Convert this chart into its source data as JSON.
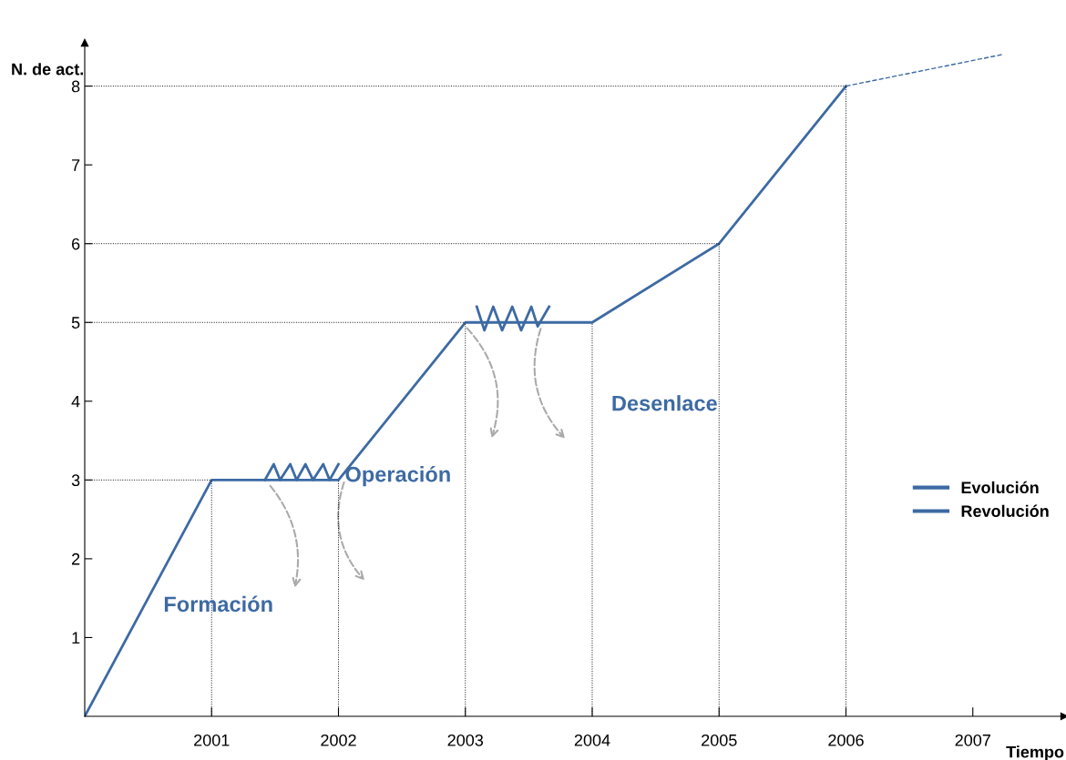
{
  "chart_data": {
    "type": "line",
    "xlabel": "Tiempo",
    "ylabel": "N. de act.",
    "annotations": [
      "Formación",
      "Operación",
      "Desenlace"
    ],
    "series": [
      {
        "name": "Evolución",
        "color": "#3d6aa3",
        "x": [
          2000,
          2001,
          2001.42,
          2002,
          2003,
          2003.6,
          2004,
          2005,
          2006
        ],
        "values": [
          0,
          3,
          3,
          3,
          5,
          5,
          5,
          6,
          8
        ]
      },
      {
        "name": "Revolución",
        "color": "#3d6aa3",
        "x": [
          2001.42,
          2001.49,
          2001.54,
          2001.62,
          2001.67,
          2001.74,
          2001.8,
          2001.88,
          2001.93,
          2002.0,
          2003.0,
          2003.09,
          2003.15,
          2003.22,
          2003.29,
          2003.37,
          2003.44,
          2003.52,
          2003.57,
          2003.66
        ],
        "values": [
          3,
          3.2,
          3.0,
          3.2,
          3.0,
          3.2,
          3.0,
          3.2,
          3.0,
          3.2,
          null,
          5.2,
          4.9,
          5.2,
          4.9,
          5.2,
          4.9,
          5.2,
          4.95,
          5.2
        ]
      },
      {
        "color": "#3d6aa3",
        "line_style": "dashed",
        "x": [
          2006,
          2007.23
        ],
        "values": [
          8,
          8.4
        ]
      }
    ],
    "xlim": [
      2000,
      2007.72
    ],
    "ylim": [
      0,
      8.55
    ],
    "xticks": [
      2001,
      2002,
      2003,
      2004,
      2005,
      2006,
      2007
    ],
    "yticks": [
      1,
      2,
      3,
      4,
      5,
      6,
      7,
      8
    ],
    "ref_lines": [
      {
        "axis": "x",
        "value": 2001
      },
      {
        "axis": "x",
        "value": 2002
      },
      {
        "axis": "x",
        "value": 2003
      },
      {
        "axis": "x",
        "value": 2004
      },
      {
        "axis": "x",
        "value": 2005
      },
      {
        "axis": "x",
        "value": 2006
      },
      {
        "axis": "y",
        "value": 3
      },
      {
        "axis": "y",
        "value": 5
      },
      {
        "axis": "y",
        "value": 6
      },
      {
        "axis": "y",
        "value": 8
      }
    ],
    "legend": "right",
    "grid": false
  }
}
